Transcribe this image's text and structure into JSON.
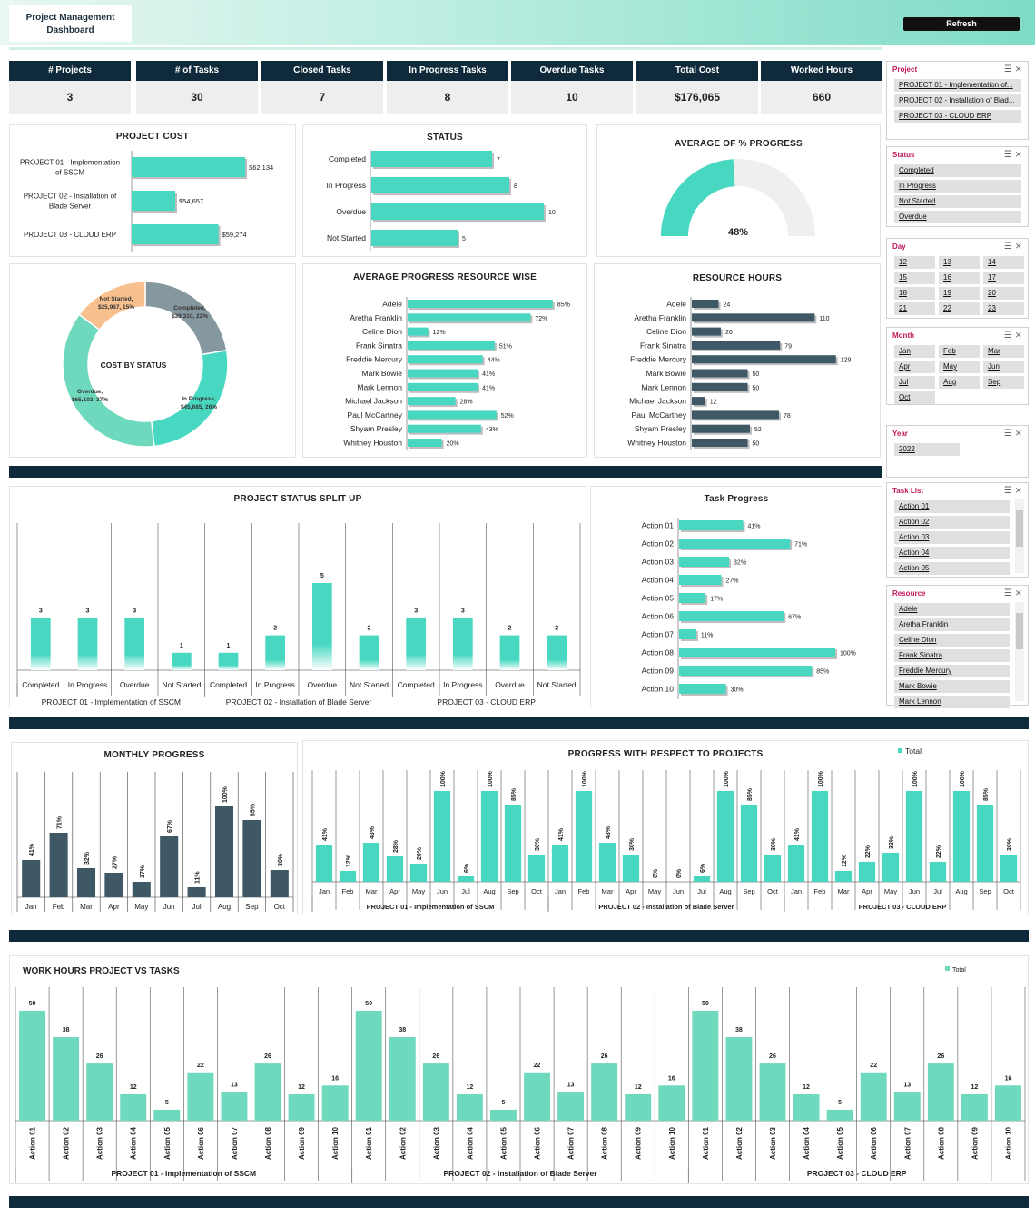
{
  "header": {
    "title_line1": "Project Management",
    "title_line2": "Dashboard",
    "refresh_label": "Refresh"
  },
  "kpis": [
    {
      "label": "# Projects",
      "value": "3"
    },
    {
      "label": "# of Tasks",
      "value": "30"
    },
    {
      "label": "Closed Tasks",
      "value": "7"
    },
    {
      "label": "In Progress Tasks",
      "value": "8"
    },
    {
      "label": "Overdue Tasks",
      "value": "10"
    },
    {
      "label": "Total Cost",
      "value": "$176,065"
    },
    {
      "label": "Worked Hours",
      "value": "660"
    }
  ],
  "colors": {
    "teal": "#48d8c2",
    "navy": "#0f2a3a",
    "slate": "#3f5865",
    "grey": "#86989f",
    "peach": "#f8c08e",
    "mint": "#6fd9bd"
  },
  "slicers": {
    "project": {
      "title": "Project",
      "items": [
        "PROJECT 01 - Implementation of...",
        "PROJECT 02 - Installation of Blad...",
        "PROJECT 03 - CLOUD ERP"
      ]
    },
    "status": {
      "title": "Status",
      "items": [
        "Completed",
        "In Progress",
        "Not Started",
        "Overdue"
      ]
    },
    "day": {
      "title": "Day",
      "items": [
        "12",
        "13",
        "14",
        "15",
        "16",
        "17",
        "18",
        "19",
        "20",
        "21",
        "22",
        "23"
      ]
    },
    "month": {
      "title": "Month",
      "items": [
        "Jan",
        "Feb",
        "Mar",
        "Apr",
        "May",
        "Jun",
        "Jul",
        "Aug",
        "Sep",
        "Oct"
      ]
    },
    "year": {
      "title": "Year",
      "items": [
        "2022"
      ]
    },
    "task_list": {
      "title": "Task List",
      "items": [
        "Action 01",
        "Action 02",
        "Action 03",
        "Action 04",
        "Action 05"
      ]
    },
    "resource": {
      "title": "Resource",
      "items": [
        "Adele",
        "Aretha Franklin",
        "Celine Dion",
        "Frank Sinatra",
        "Freddie Mercury",
        "Mark Bowie",
        "Mark Lennon"
      ]
    }
  },
  "chart_data": [
    {
      "id": "project_cost",
      "type": "bar",
      "orientation": "horizontal",
      "title": "PROJECT COST",
      "categories": [
        "PROJECT 01 - Implementation of SSCM",
        "PROJECT 02 - Installation of Blade Server",
        "PROJECT 03 - CLOUD ERP"
      ],
      "cat_lines": [
        [
          "PROJECT 01 - Implementation",
          "of SSCM"
        ],
        [
          "PROJECT 02 - Installation of",
          "Blade Server"
        ],
        [
          "PROJECT 03 - CLOUD ERP"
        ]
      ],
      "values": [
        62134,
        54657,
        59274
      ],
      "labels": [
        "$62,134",
        "$54,657",
        "$59,274"
      ],
      "xlim": [
        50000,
        63000
      ]
    },
    {
      "id": "status",
      "type": "bar",
      "orientation": "horizontal",
      "title": "STATUS",
      "categories": [
        "Completed",
        "In Progress",
        "Overdue",
        "Not Started"
      ],
      "values": [
        7,
        8,
        10,
        5
      ],
      "xlim": [
        0,
        10
      ]
    },
    {
      "id": "avg_progress",
      "type": "gauge",
      "title": "AVERAGE OF % PROGRESS",
      "value": 48,
      "label": "48%"
    },
    {
      "id": "cost_by_status",
      "type": "pie",
      "title": "COST BY STATUS",
      "slices": [
        {
          "name": "Completed",
          "value": 39310,
          "label_lines": [
            "Completed,",
            "$39,310, 22%"
          ]
        },
        {
          "name": "In Progress",
          "value": 45685,
          "label_lines": [
            "In Progress,",
            "$45,685, 26%"
          ]
        },
        {
          "name": "Overdue",
          "value": 65103,
          "label_lines": [
            "Overdue,",
            "$65,103, 37%"
          ]
        },
        {
          "name": "Not Started",
          "value": 25967,
          "label_lines": [
            "Not Started,",
            "$25,967, 15%"
          ]
        }
      ]
    },
    {
      "id": "avg_progress_resource",
      "type": "bar",
      "orientation": "horizontal",
      "title": "AVERAGE PROGRESS RESOURCE WISE",
      "categories": [
        "Adele",
        "Aretha Franklin",
        "Celine Dion",
        "Frank Sinatra",
        "Freddie Mercury",
        "Mark Bowie",
        "Mark Lennon",
        "Michael Jackson",
        "Paul McCartney",
        "Shyam Presley",
        "Whitney Houston"
      ],
      "values": [
        85,
        72,
        12,
        51,
        44,
        41,
        41,
        28,
        52,
        43,
        20
      ],
      "labels": [
        "85%",
        "72%",
        "12%",
        "51%",
        "44%",
        "41%",
        "41%",
        "28%",
        "52%",
        "43%",
        "20%"
      ],
      "xlim": [
        0,
        100
      ]
    },
    {
      "id": "resource_hours",
      "type": "bar",
      "orientation": "horizontal",
      "title": "RESOURCE HOURS",
      "categories": [
        "Adele",
        "Aretha Franklin",
        "Celine Dion",
        "Frank Sinatra",
        "Freddie Mercury",
        "Mark Bowie",
        "Mark Lennon",
        "Michael Jackson",
        "Paul McCartney",
        "Shyam Presley",
        "Whitney Houston"
      ],
      "values": [
        24,
        110,
        26,
        79,
        129,
        50,
        50,
        12,
        78,
        52,
        50
      ],
      "xlim": [
        0,
        130
      ]
    },
    {
      "id": "project_status_split",
      "type": "bar",
      "title": "PROJECT STATUS SPLIT UP",
      "groups": [
        {
          "name": "PROJECT 01 - Implementation of SSCM",
          "categories": [
            "Completed",
            "In Progress",
            "Overdue",
            "Not Started"
          ],
          "values": [
            3,
            3,
            3,
            1
          ]
        },
        {
          "name": "PROJECT 02 - Installation of Blade Server",
          "categories": [
            "Completed",
            "In Progress",
            "Overdue",
            "Not Started"
          ],
          "values": [
            1,
            2,
            5,
            2
          ]
        },
        {
          "name": "PROJECT 03 - CLOUD ERP",
          "categories": [
            "Completed",
            "In Progress",
            "Overdue",
            "Not Started"
          ],
          "values": [
            3,
            3,
            2,
            2
          ]
        }
      ],
      "ylim": [
        0,
        5
      ]
    },
    {
      "id": "task_progress",
      "type": "bar",
      "orientation": "horizontal",
      "title": "Task Progress",
      "categories": [
        "Action 01",
        "Action 02",
        "Action 03",
        "Action 04",
        "Action 05",
        "Action 06",
        "Action 07",
        "Action 08",
        "Action 09",
        "Action 10"
      ],
      "values": [
        41,
        71,
        32,
        27,
        17,
        67,
        11,
        100,
        85,
        30
      ],
      "labels": [
        "41%",
        "71%",
        "32%",
        "27%",
        "17%",
        "67%",
        "11%",
        "100%",
        "85%",
        "30%"
      ],
      "xlim": [
        0,
        100
      ]
    },
    {
      "id": "monthly_progress",
      "type": "bar",
      "title": "MONTHLY PROGRESS",
      "categories": [
        "Jan",
        "Feb",
        "Mar",
        "Apr",
        "May",
        "Jun",
        "Jul",
        "Aug",
        "Sep",
        "Oct"
      ],
      "values": [
        41,
        71,
        32,
        27,
        17,
        67,
        11,
        100,
        85,
        30
      ],
      "labels": [
        "41%",
        "71%",
        "32%",
        "27%",
        "17%",
        "67%",
        "11%",
        "100%",
        "85%",
        "30%"
      ],
      "ylim": [
        0,
        100
      ]
    },
    {
      "id": "progress_projects",
      "type": "bar",
      "title": "PROGRESS WITH RESPECT TO PROJECTS",
      "legend": "Total",
      "groups": [
        {
          "name": "PROJECT 01 - Implementation of SSCM",
          "categories": [
            "Jan",
            "Feb",
            "Mar",
            "Apr",
            "May",
            "Jun",
            "Jul",
            "Aug",
            "Sep",
            "Oct"
          ],
          "values": [
            41,
            12,
            43,
            28,
            20,
            100,
            6,
            100,
            85,
            30
          ],
          "labels": [
            "41%",
            "12%",
            "43%",
            "28%",
            "20%",
            "100%",
            "6%",
            "100%",
            "85%",
            "30%"
          ]
        },
        {
          "name": "PROJECT 02 - Installation of Blade Server",
          "categories": [
            "Jan",
            "Feb",
            "Mar",
            "Apr",
            "May",
            "Jun",
            "Jul",
            "Aug",
            "Sep",
            "Oct"
          ],
          "values": [
            41,
            100,
            43,
            30,
            0,
            0,
            6,
            100,
            85,
            30
          ],
          "labels": [
            "41%",
            "100%",
            "43%",
            "30%",
            "0%",
            "0%",
            "6%",
            "100%",
            "85%",
            "30%"
          ]
        },
        {
          "name": "PROJECT 03 - CLOUD ERP",
          "categories": [
            "Jan",
            "Feb",
            "Mar",
            "Apr",
            "May",
            "Jun",
            "Jul",
            "Aug",
            "Sep",
            "Oct"
          ],
          "values": [
            41,
            100,
            12,
            22,
            32,
            100,
            22,
            100,
            85,
            30
          ],
          "labels": [
            "41%",
            "100%",
            "12%",
            "22%",
            "32%",
            "100%",
            "22%",
            "100%",
            "85%",
            "30%"
          ]
        }
      ],
      "ylim": [
        0,
        100
      ]
    },
    {
      "id": "work_hours",
      "type": "bar",
      "title": "WORK HOURS PROJECT VS TASKS",
      "legend": "Total",
      "groups": [
        {
          "name": "PROJECT 01 - Implementation of SSCM",
          "categories": [
            "Action 01",
            "Action 02",
            "Action 03",
            "Action 04",
            "Action 05",
            "Action 06",
            "Action 07",
            "Action 08",
            "Action 09",
            "Action 10"
          ],
          "values": [
            50,
            38,
            26,
            12,
            5,
            22,
            13,
            26,
            12,
            16
          ]
        },
        {
          "name": "PROJECT 02 - Installation of Blade Server",
          "categories": [
            "Action 01",
            "Action 02",
            "Action 03",
            "Action 04",
            "Action 05",
            "Action 06",
            "Action 07",
            "Action 08",
            "Action 09",
            "Action 10"
          ],
          "values": [
            50,
            38,
            26,
            12,
            5,
            22,
            13,
            26,
            12,
            16
          ]
        },
        {
          "name": "PROJECT 03 - CLOUD ERP",
          "categories": [
            "Action 01",
            "Action 02",
            "Action 03",
            "Action 04",
            "Action 05",
            "Action 06",
            "Action 07",
            "Action 08",
            "Action 09",
            "Action 10"
          ],
          "values": [
            50,
            38,
            26,
            12,
            5,
            22,
            13,
            26,
            12,
            16
          ]
        }
      ],
      "ylim": [
        0,
        50
      ]
    }
  ]
}
